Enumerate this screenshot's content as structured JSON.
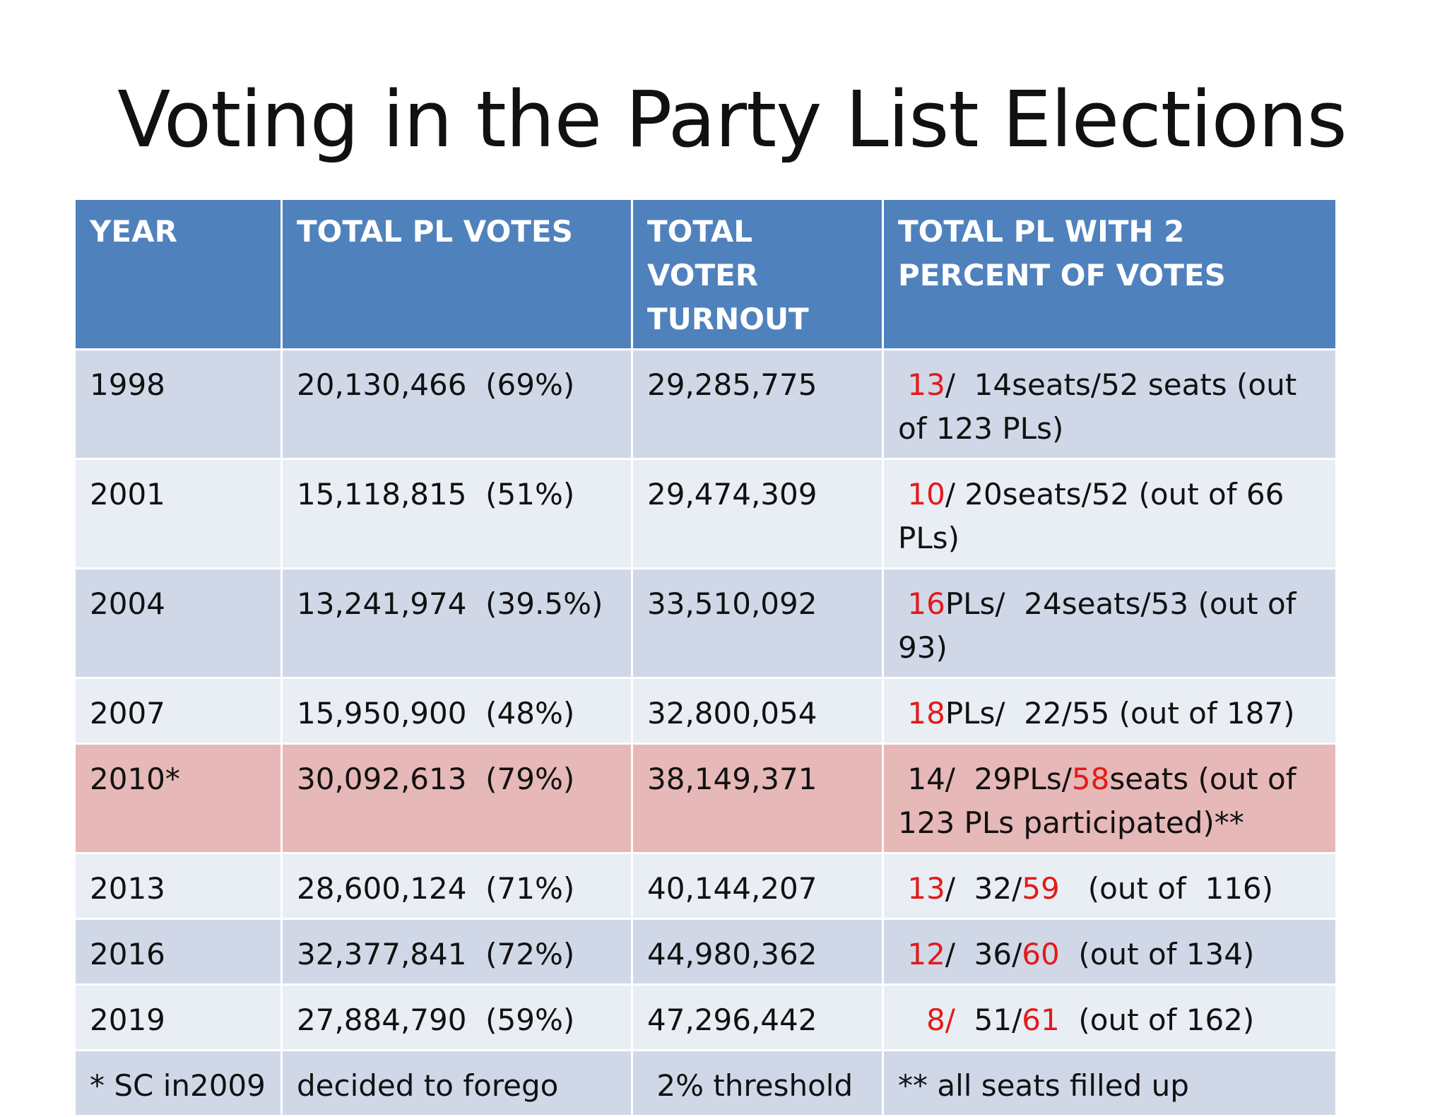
{
  "slide": {
    "title": "Voting in the Party List Elections"
  },
  "table": {
    "headers": [
      "YEAR",
      "TOTAL PL VOTES",
      "TOTAL VOTER TURNOUT",
      "TOTAL PL WITH 2 PERCENT OF VOTES"
    ],
    "rows": [
      {
        "year": "1998",
        "pl_votes": "20,130,466  (69%)",
        "turnout": "29,285,775",
        "seats_a": " ",
        "seats_red1": "13",
        "seats_b": "/  14seats/52 seats (out of 123 PLs)",
        "seats_red2": "",
        "seats_c": ""
      },
      {
        "year": "2001",
        "pl_votes": "15,118,815  (51%)",
        "turnout": "29,474,309",
        "seats_a": " ",
        "seats_red1": "10",
        "seats_b": "/ 20seats/52 (out of 66 PLs)",
        "seats_red2": "",
        "seats_c": ""
      },
      {
        "year": "2004",
        "pl_votes": "13,241,974  (39.5%)",
        "turnout": "33,510,092",
        "seats_a": " ",
        "seats_red1": "16",
        "seats_b": "PLs/  24seats/53 (out of 93)",
        "seats_red2": "",
        "seats_c": ""
      },
      {
        "year": "2007",
        "pl_votes": "15,950,900  (48%)",
        "turnout": "32,800,054",
        "seats_a": " ",
        "seats_red1": "18",
        "seats_b": "PLs/  22/55 (out of 187)",
        "seats_red2": "",
        "seats_c": ""
      },
      {
        "year": "2010*",
        "pl_votes": "30,092,613  (79%)",
        "turnout": "38,149,371",
        "seats_a": " 14/  29PLs/",
        "seats_red1": "",
        "seats_b": "",
        "seats_red2": "58",
        "seats_c": "seats (out of 123 PLs participated)**"
      },
      {
        "year": "2013",
        "pl_votes": "28,600,124  (71%)",
        "turnout": "40,144,207",
        "seats_a": " ",
        "seats_red1": "13",
        "seats_b": "/  32/",
        "seats_red2": "59",
        "seats_c": "   (out of  116)"
      },
      {
        "year": "2016",
        "pl_votes": "32,377,841  (72%)",
        "turnout": "44,980,362",
        "seats_a": " ",
        "seats_red1": "12",
        "seats_b": "/  36/",
        "seats_red2": "60",
        "seats_c": "  (out of 134)"
      },
      {
        "year": "2019",
        "pl_votes": "27,884,790  (59%)",
        "turnout": "47,296,442",
        "seats_a": "   ",
        "seats_red1": "8/",
        "seats_b": "  51/",
        "seats_red2": "61",
        "seats_c": "  (out of 162)"
      }
    ],
    "footer": {
      "col1": "* SC in2009",
      "col2": "decided to forego",
      "col3": " 2% threshold",
      "col4": "** all seats filled up"
    }
  },
  "colors": {
    "header_bg": "#4f81bd",
    "row_dark": "#d0d8e8",
    "row_light": "#e9edf4",
    "row_highlight": "#e6b8b7",
    "emphasis_red": "#e31a1a"
  }
}
